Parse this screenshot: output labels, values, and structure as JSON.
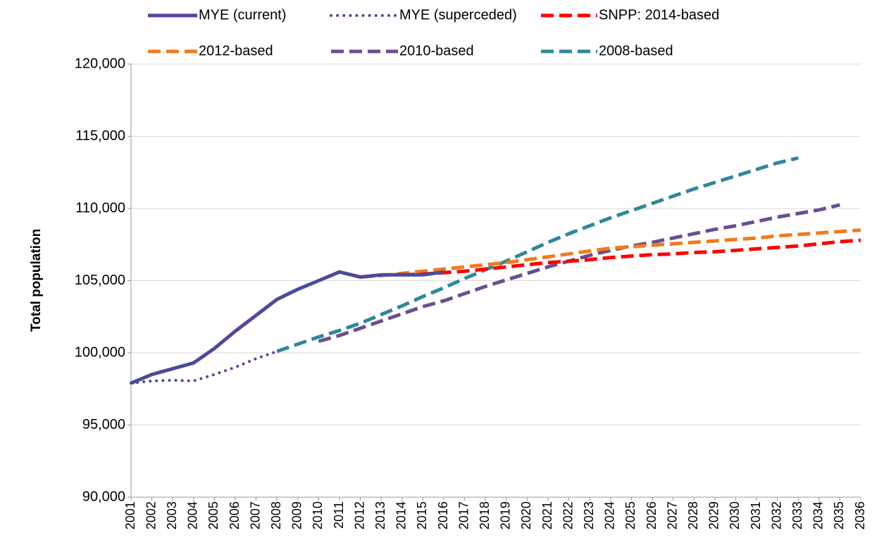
{
  "chart_data": {
    "type": "line",
    "y_label": "Total population",
    "categories": [
      "2001",
      "2002",
      "2003",
      "2004",
      "2005",
      "2006",
      "2007",
      "2008",
      "2009",
      "2010",
      "2011",
      "2012",
      "2013",
      "2014",
      "2015",
      "2016",
      "2017",
      "2018",
      "2019",
      "2020",
      "2021",
      "2022",
      "2023",
      "2024",
      "2025",
      "2026",
      "2027",
      "2028",
      "2029",
      "2030",
      "2031",
      "2032",
      "2033",
      "2034",
      "2035",
      "2036"
    ],
    "ylim": [
      90000,
      120000
    ],
    "yticks": [
      {
        "value": 90000,
        "label": "90,000"
      },
      {
        "value": 95000,
        "label": "95,000"
      },
      {
        "value": 100000,
        "label": "100,000"
      },
      {
        "value": 105000,
        "label": "105,000"
      },
      {
        "value": 110000,
        "label": "110,000"
      },
      {
        "value": 115000,
        "label": "115,000"
      },
      {
        "value": 120000,
        "label": "120,000"
      }
    ],
    "grid": true,
    "legend": "top",
    "series": [
      {
        "name": "MYE (current)",
        "color": "#4b4a9a",
        "style": "solid",
        "values": [
          97900,
          98500,
          98900,
          99300,
          100300,
          101500,
          102600,
          103700,
          104400,
          105000,
          105600,
          105250,
          105400,
          105400,
          105400,
          105600,
          null,
          null,
          null,
          null,
          null,
          null,
          null,
          null,
          null,
          null,
          null,
          null,
          null,
          null,
          null,
          null,
          null,
          null,
          null,
          null
        ]
      },
      {
        "name": "MYE (superceded)",
        "color": "#4b4a9a",
        "style": "dotted",
        "values": [
          97900,
          98050,
          98100,
          98050,
          98500,
          99000,
          99600,
          100100,
          null,
          null,
          null,
          null,
          null,
          null,
          null,
          null,
          null,
          null,
          null,
          null,
          null,
          null,
          null,
          null,
          null,
          null,
          null,
          null,
          null,
          null,
          null,
          null,
          null,
          null,
          null,
          null
        ]
      },
      {
        "name": "SNPP: 2014-based",
        "color": "#ff0000",
        "style": "dashed",
        "values": [
          null,
          null,
          null,
          null,
          null,
          null,
          null,
          null,
          null,
          null,
          null,
          null,
          null,
          105400,
          105450,
          105550,
          105650,
          105800,
          105950,
          106100,
          106250,
          106350,
          106450,
          106600,
          106700,
          106800,
          106850,
          106950,
          107000,
          107100,
          107200,
          107300,
          107400,
          107550,
          107700,
          107800
        ]
      },
      {
        "name": "2012-based",
        "color": "#f07b1e",
        "style": "dashed",
        "values": [
          null,
          null,
          null,
          null,
          null,
          null,
          null,
          null,
          null,
          null,
          null,
          105250,
          105350,
          105500,
          105650,
          105800,
          105950,
          106100,
          106250,
          106450,
          106650,
          106850,
          107050,
          107250,
          107350,
          107450,
          107550,
          107650,
          107750,
          107850,
          107950,
          108100,
          108200,
          108300,
          108400,
          108500
        ]
      },
      {
        "name": "2010-based",
        "color": "#6a4f8f",
        "style": "dashed",
        "values": [
          null,
          null,
          null,
          null,
          null,
          null,
          null,
          null,
          null,
          100800,
          101200,
          101700,
          102200,
          102700,
          103200,
          103600,
          104100,
          104600,
          105050,
          105500,
          105950,
          106350,
          106750,
          107100,
          107400,
          107650,
          107950,
          108250,
          108550,
          108800,
          109100,
          109400,
          109650,
          109900,
          110250,
          null
        ]
      },
      {
        "name": "2008-based",
        "color": "#31879a",
        "style": "dashed",
        "values": [
          null,
          null,
          null,
          null,
          null,
          null,
          null,
          100100,
          100600,
          101100,
          101550,
          102050,
          102650,
          103250,
          103900,
          104500,
          105150,
          105750,
          106350,
          107000,
          107650,
          108250,
          108800,
          109350,
          109850,
          110350,
          110850,
          111350,
          111800,
          112250,
          112700,
          113150,
          113500,
          null,
          null,
          null
        ]
      }
    ]
  }
}
